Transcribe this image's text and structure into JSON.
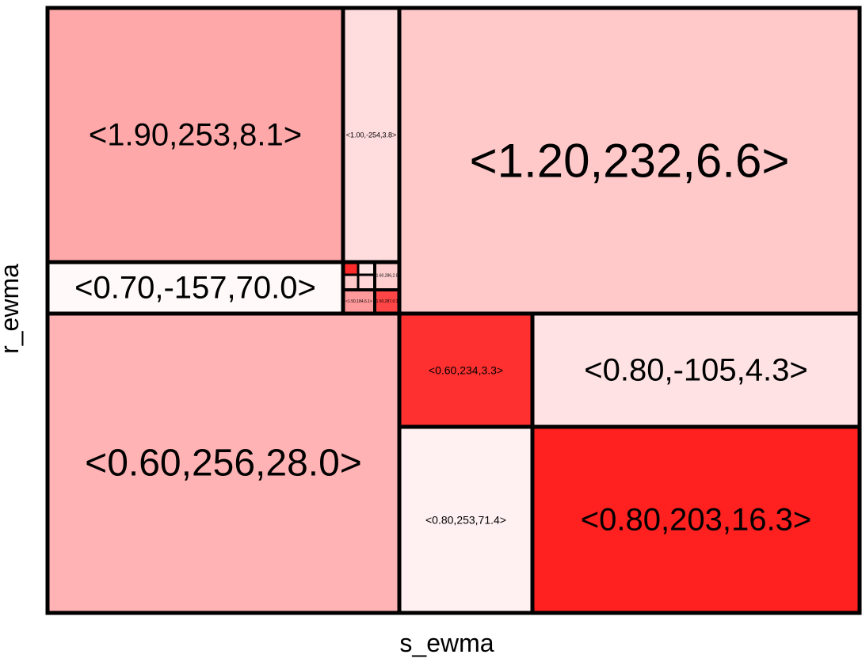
{
  "chart_data": {
    "type": "treemap",
    "title": "",
    "xlabel": "s_ewma",
    "ylabel": "r_ewma",
    "cells": [
      {
        "label": "<1.90,253,8.1>",
        "color": "#ffa8aa"
      },
      {
        "label": "<1.00,-254,3.8>",
        "color": "#ffdcde"
      },
      {
        "label": "<1.20,232,6.6>",
        "color": "#ffc9ca"
      },
      {
        "label": "<0.70,-157,70.0>",
        "color": "#fff9fa"
      },
      {
        "label": "",
        "color": "#ff2b2b"
      },
      {
        "label": "",
        "color": "#ffe7e8"
      },
      {
        "label": "",
        "color": "#ffc9ca"
      },
      {
        "label": "",
        "color": "#ffd7d8"
      },
      {
        "label": "<1.60,286,2.8>",
        "color": "#ffcfd0"
      },
      {
        "label": "<1.50,184,6.1>",
        "color": "#ff9a9c"
      },
      {
        "label": "<1.50,287,0.1>",
        "color": "#ff4545"
      },
      {
        "label": "<0.60,256,28.0>",
        "color": "#ffb3b4"
      },
      {
        "label": "<0.60,234,3.3>",
        "color": "#ff3030"
      },
      {
        "label": "<0.80,-105,4.3>",
        "color": "#ffe3e4"
      },
      {
        "label": "<0.80,253,71.4>",
        "color": "#fff0f1"
      },
      {
        "label": "<0.80,203,16.3>",
        "color": "#ff2020"
      }
    ]
  }
}
